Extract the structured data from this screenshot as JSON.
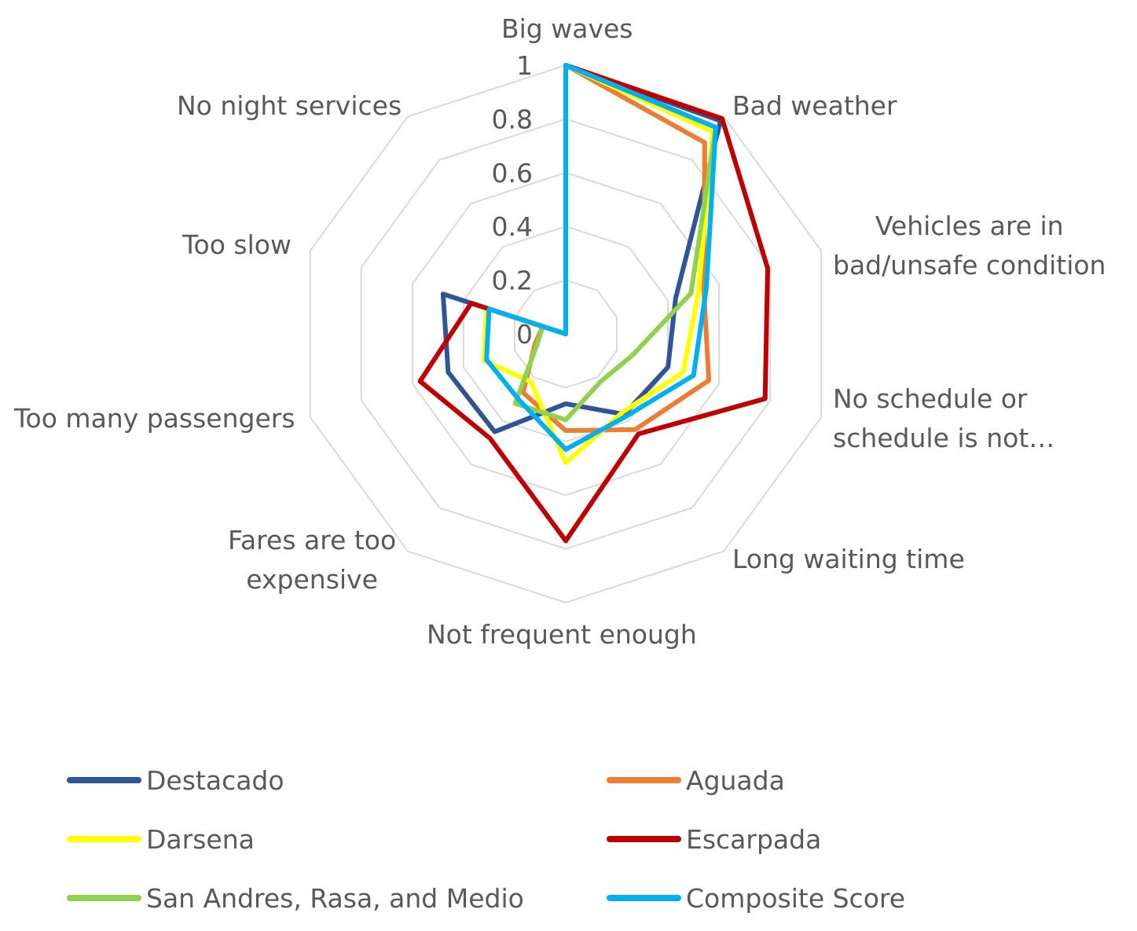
{
  "chart_data": {
    "type": "radar",
    "categories": [
      "Big waves",
      "Bad weather",
      "Vehicles are in\nbad/unsafe condition",
      "No schedule or\nschedule is not…",
      "Long waiting time",
      "Not frequent enough",
      "Fares are too\nexpensive",
      "Too many passengers",
      "Too slow",
      "No night services"
    ],
    "rlim": [
      0,
      1
    ],
    "ticks": [
      "0",
      "0.2",
      "0.4",
      "0.6",
      "0.8",
      "1"
    ],
    "tick_values": [
      0,
      0.2,
      0.4,
      0.6,
      0.8,
      1
    ],
    "grid": true,
    "legend_position": "bottom",
    "series": [
      {
        "name": "Destacado",
        "color": "#2F5597",
        "values": [
          1.0,
          0.98,
          0.43,
          0.4,
          0.37,
          0.26,
          0.45,
          0.46,
          0.48,
          0.0
        ]
      },
      {
        "name": "Aguada",
        "color": "#ED7D31",
        "values": [
          1.0,
          0.88,
          0.54,
          0.56,
          0.44,
          0.36,
          0.27,
          0.12,
          0.09,
          0.0
        ]
      },
      {
        "name": "Darsena",
        "color": "#FFFF00",
        "values": [
          1.0,
          0.93,
          0.52,
          0.46,
          0.36,
          0.48,
          0.22,
          0.32,
          0.31,
          0.0
        ]
      },
      {
        "name": "Escarpada",
        "color": "#C00000",
        "values": [
          1.0,
          0.99,
          0.79,
          0.78,
          0.46,
          0.77,
          0.48,
          0.57,
          0.37,
          0.0
        ]
      },
      {
        "name": "San Andres, Rasa, and Medio",
        "color": "#92D050",
        "values": [
          1.0,
          0.95,
          0.49,
          0.26,
          0.22,
          0.32,
          0.32,
          0.11,
          0.09,
          0.0
        ]
      },
      {
        "name": "Composite Score",
        "color": "#00B0F0",
        "values": [
          1.0,
          0.95,
          0.55,
          0.5,
          0.38,
          0.43,
          0.3,
          0.31,
          0.3,
          0.0
        ]
      }
    ]
  }
}
